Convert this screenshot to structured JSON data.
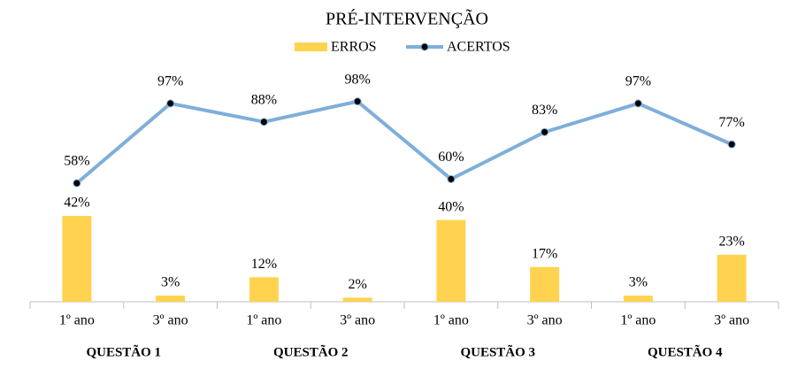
{
  "chart_data": {
    "type": "bar",
    "title": "PRÉ-INTERVENÇÃO",
    "categories": [
      "1º ano",
      "3º ano",
      "1º ano",
      "3º ano",
      "1º ano",
      "3º ano",
      "1º ano",
      "3º ano"
    ],
    "groups": [
      "QUESTÃO 1",
      "QUESTÃO 2",
      "QUESTÃO 3",
      "QUESTÃO 4"
    ],
    "series": [
      {
        "name": "ERROS",
        "type": "bar",
        "color": "#ffd34f",
        "values": [
          42,
          3,
          12,
          2,
          40,
          17,
          3,
          23
        ],
        "value_labels": [
          "42%",
          "3%",
          "12%",
          "2%",
          "40%",
          "17%",
          "3%",
          "23%"
        ]
      },
      {
        "name": "ACERTOS",
        "type": "line",
        "color": "#7eaedb",
        "marker_color": "#000000",
        "values": [
          58,
          97,
          88,
          98,
          60,
          83,
          97,
          77
        ],
        "value_labels": [
          "58%",
          "97%",
          "88%",
          "98%",
          "60%",
          "83%",
          "97%",
          "77%"
        ]
      }
    ],
    "ylim": [
      0,
      100
    ],
    "legend": "top"
  }
}
